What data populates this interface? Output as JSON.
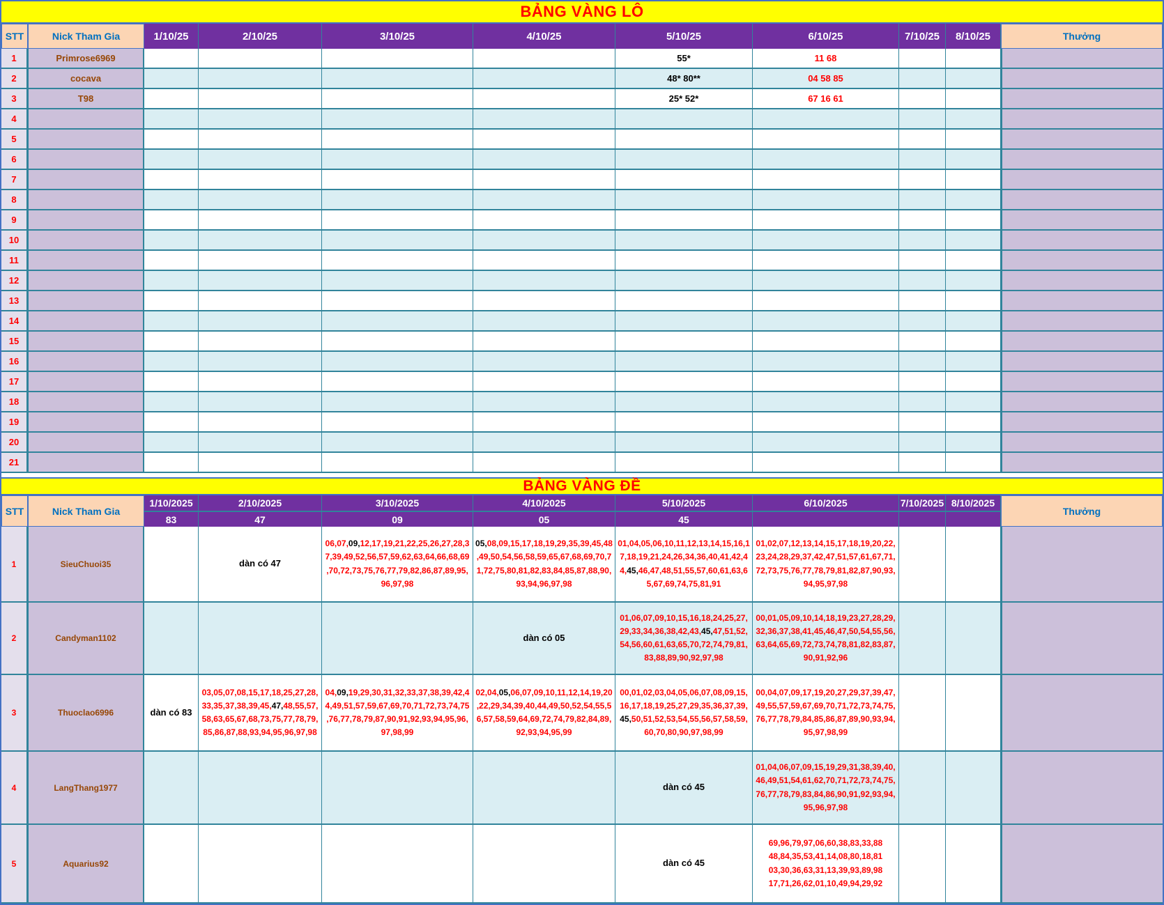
{
  "colors": {
    "title_bg": "#FFFF00",
    "title_text": "#FF0000",
    "header_purple": "#7030A0",
    "header_peach": "#FCD5B4",
    "header_label_text": "#0070C0",
    "nick_cell_bg": "#CCC0DA",
    "nick_text": "#974706",
    "stt_cell_bg": "#E4DFEC",
    "stripe_blue": "#DAEEF3",
    "grid_border": "#31849B",
    "outer_border": "#4472C4",
    "number_red": "#FF0000"
  },
  "lo_table": {
    "title": "BẢNG VÀNG LÔ",
    "col_stt": "STT",
    "col_nick": "Nick Tham Gia",
    "col_thuong": "Thưởng",
    "dates": [
      "1/10/25",
      "2/10/25",
      "3/10/25",
      "4/10/25",
      "5/10/25",
      "6/10/25",
      "7/10/25",
      "8/10/25"
    ],
    "rows": [
      {
        "stt": "1",
        "nick": "Primrose6969",
        "cells": [
          "",
          "",
          "",
          "",
          "55*",
          "11 68",
          "",
          ""
        ],
        "thuong": ""
      },
      {
        "stt": "2",
        "nick": "cocava",
        "cells": [
          "",
          "",
          "",
          "",
          "48* 80**",
          "04 58 85",
          "",
          ""
        ],
        "thuong": ""
      },
      {
        "stt": "3",
        "nick": "T98",
        "cells": [
          "",
          "",
          "",
          "",
          "25* 52*",
          "67 16 61",
          "",
          ""
        ],
        "thuong": ""
      },
      {
        "stt": "4",
        "nick": ""
      },
      {
        "stt": "5",
        "nick": ""
      },
      {
        "stt": "6",
        "nick": ""
      },
      {
        "stt": "7",
        "nick": ""
      },
      {
        "stt": "8",
        "nick": ""
      },
      {
        "stt": "9",
        "nick": ""
      },
      {
        "stt": "10",
        "nick": ""
      },
      {
        "stt": "11",
        "nick": ""
      },
      {
        "stt": "12",
        "nick": ""
      },
      {
        "stt": "13",
        "nick": ""
      },
      {
        "stt": "14",
        "nick": ""
      },
      {
        "stt": "15",
        "nick": ""
      },
      {
        "stt": "16",
        "nick": ""
      },
      {
        "stt": "17",
        "nick": ""
      },
      {
        "stt": "18",
        "nick": ""
      },
      {
        "stt": "19",
        "nick": ""
      },
      {
        "stt": "20",
        "nick": ""
      },
      {
        "stt": "21",
        "nick": ""
      }
    ]
  },
  "de_table": {
    "title": "BẢNG VÀNG ĐỀ",
    "col_stt": "STT",
    "col_nick": "Nick Tham Gia",
    "col_thuong": "Thưởng",
    "dates": [
      "1/10/2025",
      "2/10/2025",
      "3/10/2025",
      "4/10/2025",
      "5/10/2025",
      "6/10/2025",
      "7/10/2025",
      "8/10/2025"
    ],
    "results": [
      "83",
      "47",
      "09",
      "05",
      "45",
      "",
      "",
      ""
    ],
    "rows": [
      {
        "stt": "1",
        "nick": "SieuChuoi35",
        "thuong": "",
        "cells": [
          "",
          {
            "t": "dàn có 47",
            "note": true
          },
          {
            "t": "06,07,09,12,17,19,21,22,25,26,27,28,37,39,49,52,56,57,59,62,63,64,66,68,69,70,72,73,75,76,77,79,82,86,87,89,95,96,97,98",
            "hl": "09"
          },
          {
            "t": "05,08,09,15,17,18,19,29,35,39,45,48,49,50,54,56,58,59,65,67,68,69,70,71,72,75,80,81,82,83,84,85,87,88,90,93,94,96,97,98",
            "hl": "05"
          },
          {
            "t": "01,04,05,06,10,11,12,13,14,15,16,17,18,19,21,24,26,34,36,40,41,42,44,45,46,47,48,51,55,57,60,61,63,65,67,69,74,75,81,91",
            "hl": "45"
          },
          {
            "t": "01,02,07,12,13,14,15,17,18,19,20,22,23,24,28,29,37,42,47,51,57,61,67,71,72,73,75,76,77,78,79,81,82,87,90,93,94,95,97,98"
          },
          "",
          ""
        ]
      },
      {
        "stt": "2",
        "nick": "Candyman1102",
        "thuong": "",
        "cells": [
          "",
          "",
          "",
          {
            "t": "dàn có 05",
            "note": true
          },
          {
            "t": "01,06,07,09,10,15,16,18,24,25,27,29,33,34,36,38,42,43,45,47,51,52,54,56,60,61,63,65,70,72,74,79,81,83,88,89,90,92,97,98",
            "hl": "45"
          },
          {
            "t": "00,01,05,09,10,14,18,19,23,27,28,29,32,36,37,38,41,45,46,47,50,54,55,56,63,64,65,69,72,73,74,78,81,82,83,87,90,91,92,96"
          },
          "",
          ""
        ]
      },
      {
        "stt": "3",
        "nick": "Thuoclao6996",
        "thuong": "",
        "cells": [
          {
            "t": "dàn có 83",
            "note": true
          },
          {
            "t": "03,05,07,08,15,17,18,25,27,28,33,35,37,38,39,45,47,48,55,57,58,63,65,67,68,73,75,77,78,79,85,86,87,88,93,94,95,96,97,98",
            "hl": "47"
          },
          {
            "t": "04,09,19,29,30,31,32,33,37,38,39,42,44,49,51,57,59,67,69,70,71,72,73,74,75,76,77,78,79,87,90,91,92,93,94,95,96,97,98,99",
            "hl": "09"
          },
          {
            "t": "02,04,05,06,07,09,10,11,12,14,19,20,22,29,34,39,40,44,49,50,52,54,55,56,57,58,59,64,69,72,74,79,82,84,89,92,93,94,95,99",
            "hl": "05"
          },
          {
            "t": "00,01,02,03,04,05,06,07,08,09,15,16,17,18,19,25,27,29,35,36,37,39,45,50,51,52,53,54,55,56,57,58,59,60,70,80,90,97,98,99",
            "hl": "45"
          },
          {
            "t": "00,04,07,09,17,19,20,27,29,37,39,47,49,55,57,59,67,69,70,71,72,73,74,75,76,77,78,79,84,85,86,87,89,90,93,94,95,97,98,99"
          },
          "",
          ""
        ]
      },
      {
        "stt": "4",
        "nick": "LangThang1977",
        "thuong": "",
        "cells": [
          "",
          "",
          "",
          "",
          {
            "t": "dàn có 45",
            "note": true
          },
          {
            "t": "01,04,06,07,09,15,19,29,31,38,39,40,46,49,51,54,61,62,70,71,72,73,74,75,76,77,78,79,83,84,86,90,91,92,93,94,95,96,97,98"
          },
          "",
          ""
        ]
      },
      {
        "stt": "5",
        "nick": "Aquarius92",
        "thuong": "",
        "cells": [
          "",
          "",
          "",
          "",
          {
            "t": "dàn có 45",
            "note": true
          },
          {
            "t": "69,96,79,97,06,60,38,83,33,88 48,84,35,53,41,14,08,80,18,81 03,30,36,63,31,13,39,93,89,98 17,71,26,62,01,10,49,94,29,92"
          },
          "",
          ""
        ]
      }
    ]
  }
}
